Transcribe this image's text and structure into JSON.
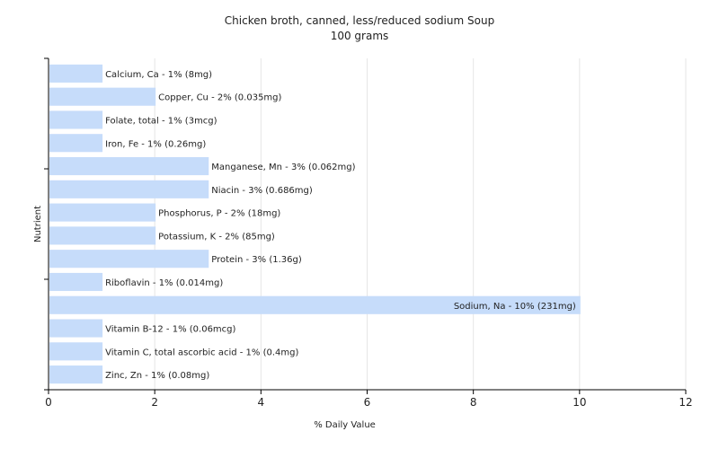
{
  "chart_data": {
    "type": "bar",
    "orientation": "horizontal",
    "title": "Chicken broth, canned, less/reduced sodium Soup",
    "subtitle": "100 grams",
    "xlabel": "% Daily Value",
    "ylabel": "Nutrient",
    "xlim": [
      0,
      12
    ],
    "xticks": [
      "0",
      "2",
      "4",
      "6",
      "8",
      "10",
      "12"
    ],
    "grid": true,
    "bar_color": "#c6dcfa",
    "categories": [
      "Calcium, Ca",
      "Copper, Cu",
      "Folate, total",
      "Iron, Fe",
      "Manganese, Mn",
      "Niacin",
      "Phosphorus, P",
      "Potassium, K",
      "Protein",
      "Riboflavin",
      "Sodium, Na",
      "Vitamin B-12",
      "Vitamin C, total ascorbic acid",
      "Zinc, Zn"
    ],
    "values": [
      1,
      2,
      1,
      1,
      3,
      3,
      2,
      2,
      3,
      1,
      10,
      1,
      1,
      1
    ],
    "labels": [
      "Calcium, Ca - 1% (8mg)",
      "Copper, Cu - 2% (0.035mg)",
      "Folate, total - 1% (3mcg)",
      "Iron, Fe - 1% (0.26mg)",
      "Manganese, Mn - 3% (0.062mg)",
      "Niacin - 3% (0.686mg)",
      "Phosphorus, P - 2% (18mg)",
      "Potassium, K - 2% (85mg)",
      "Protein - 3% (1.36g)",
      "Riboflavin - 1% (0.014mg)",
      "Sodium, Na - 10% (231mg)",
      "Vitamin B-12 - 1% (0.06mcg)",
      "Vitamin C, total ascorbic acid - 1% (0.4mg)",
      "Zinc, Zn - 1% (0.08mg)"
    ]
  }
}
